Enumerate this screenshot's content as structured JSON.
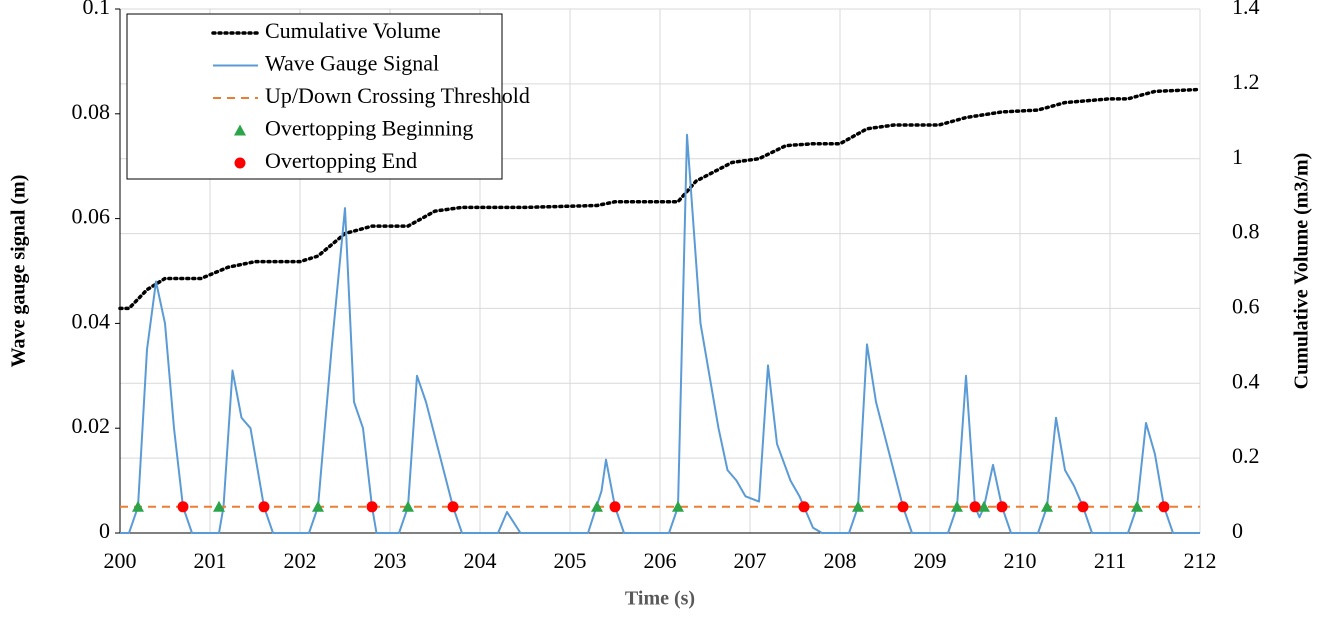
{
  "chart_data": {
    "type": "line",
    "xlabel": "Time (s)",
    "ylabel": "Wave gauge signal (m)",
    "y2label": "Cumulative Volume (m3/m)",
    "xlim": [
      200,
      212
    ],
    "xticks": [
      200,
      201,
      202,
      203,
      204,
      205,
      206,
      207,
      208,
      209,
      210,
      211,
      212
    ],
    "ylim": [
      0,
      0.1
    ],
    "yticks": [
      0,
      0.02,
      0.04,
      0.06,
      0.08,
      0.1
    ],
    "y2lim": [
      0,
      1.4
    ],
    "y2ticks": [
      0,
      0.2,
      0.4,
      0.6,
      0.8,
      1,
      1.2,
      1.4
    ],
    "grid": true,
    "legend": "upper left",
    "series": [
      {
        "name": "Cumulative Volume",
        "color": "#000000",
        "style": "dotted",
        "axis": "y2",
        "x": [
          200,
          200.1,
          200.3,
          200.5,
          200.9,
          201.2,
          201.5,
          202.0,
          202.2,
          202.5,
          202.8,
          203.2,
          203.5,
          203.8,
          204.5,
          205.3,
          205.5,
          206.2,
          206.4,
          206.8,
          207.1,
          207.4,
          207.7,
          208.0,
          208.3,
          208.6,
          209.1,
          209.4,
          209.8,
          210.2,
          210.5,
          211.0,
          211.2,
          211.5,
          212
        ],
        "values": [
          0.6,
          0.6,
          0.65,
          0.68,
          0.68,
          0.71,
          0.725,
          0.725,
          0.74,
          0.8,
          0.82,
          0.82,
          0.86,
          0.87,
          0.87,
          0.875,
          0.885,
          0.885,
          0.94,
          0.99,
          1.0,
          1.035,
          1.04,
          1.04,
          1.08,
          1.09,
          1.09,
          1.11,
          1.125,
          1.13,
          1.15,
          1.16,
          1.16,
          1.18,
          1.185
        ]
      },
      {
        "name": "Wave Gauge Signal",
        "color": "#5b9bd5",
        "style": "solid",
        "x": [
          200.0,
          200.1,
          200.2,
          200.3,
          200.4,
          200.5,
          200.6,
          200.7,
          200.8,
          201.1,
          201.15,
          201.25,
          201.35,
          201.45,
          201.55,
          201.6,
          201.7,
          202.1,
          202.2,
          202.35,
          202.5,
          202.6,
          202.7,
          202.8,
          202.85,
          203.1,
          203.2,
          203.3,
          203.4,
          203.55,
          203.7,
          203.8,
          204.2,
          204.3,
          204.45,
          205.2,
          205.35,
          205.4,
          205.5,
          205.6,
          206.1,
          206.2,
          206.3,
          206.45,
          206.65,
          206.75,
          206.85,
          206.95,
          207.1,
          207.2,
          207.3,
          207.45,
          207.55,
          207.6,
          207.7,
          207.8,
          208.1,
          208.2,
          208.3,
          208.4,
          208.55,
          208.7,
          208.8,
          209.2,
          209.3,
          209.4,
          209.5,
          209.55,
          209.6,
          209.7,
          209.8,
          209.9,
          210.2,
          210.3,
          210.4,
          210.5,
          210.6,
          210.7,
          210.8,
          211.2,
          211.3,
          211.4,
          211.5,
          211.6,
          211.7,
          212
        ],
        "values": [
          0,
          0,
          0.005,
          0.035,
          0.048,
          0.04,
          0.02,
          0.005,
          0,
          0,
          0.005,
          0.031,
          0.022,
          0.02,
          0.01,
          0.005,
          0,
          0,
          0.005,
          0.035,
          0.062,
          0.025,
          0.02,
          0.005,
          0,
          0,
          0.005,
          0.03,
          0.025,
          0.015,
          0.005,
          0,
          0,
          0.004,
          0,
          0,
          0.008,
          0.014,
          0.005,
          0,
          0,
          0.005,
          0.076,
          0.04,
          0.02,
          0.012,
          0.01,
          0.007,
          0.006,
          0.032,
          0.017,
          0.01,
          0.007,
          0.005,
          0.001,
          0,
          0,
          0.005,
          0.036,
          0.025,
          0.015,
          0.005,
          0,
          0,
          0.005,
          0.03,
          0.005,
          0.003,
          0.005,
          0.013,
          0.005,
          0,
          0,
          0.005,
          0.022,
          0.012,
          0.009,
          0.005,
          0,
          0,
          0.005,
          0.021,
          0.015,
          0.005,
          0,
          0
        ]
      },
      {
        "name": "Up/Down Crossing Threshold",
        "color": "#ed7d31",
        "style": "dashed",
        "x": [
          200,
          212
        ],
        "values": [
          0.005,
          0.005
        ]
      },
      {
        "name": "Overtopping Beginning",
        "color": "#2ca54a",
        "marker": "triangle",
        "x": [
          200.2,
          201.1,
          202.2,
          203.2,
          205.3,
          206.2,
          208.2,
          209.3,
          209.6,
          210.3,
          211.3
        ],
        "values": [
          0.005,
          0.005,
          0.005,
          0.005,
          0.005,
          0.005,
          0.005,
          0.005,
          0.005,
          0.005,
          0.005
        ]
      },
      {
        "name": "Overtopping End",
        "color": "#ff0000",
        "marker": "circle",
        "x": [
          200.7,
          201.6,
          202.8,
          203.7,
          205.5,
          207.6,
          208.7,
          209.5,
          209.8,
          210.7,
          211.6
        ],
        "values": [
          0.005,
          0.005,
          0.005,
          0.005,
          0.005,
          0.005,
          0.005,
          0.005,
          0.005,
          0.005,
          0.005
        ]
      }
    ]
  }
}
